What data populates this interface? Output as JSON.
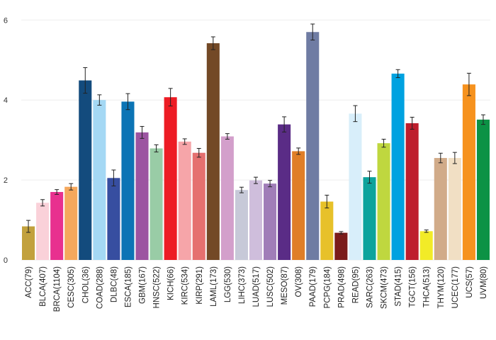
{
  "chart_data": {
    "type": "bar",
    "categories": [
      "ACC(79)",
      "BLCA(407)",
      "BRCA(1104)",
      "CESC(305)",
      "CHOL(36)",
      "COAD(288)",
      "DLBC(48)",
      "ESCA(185)",
      "GBM(167)",
      "HNSC(522)",
      "KICH(66)",
      "KIRC(534)",
      "KIRP(291)",
      "LAML(173)",
      "LGG(530)",
      "LIHC(373)",
      "LUAD(517)",
      "LUSC(502)",
      "MESO(87)",
      "OV(308)",
      "PAAD(179)",
      "PCPG(184)",
      "PRAD(498)",
      "READ(95)",
      "SARC(263)",
      "SKCM(473)",
      "STAD(415)",
      "TGCT(156)",
      "THCA(513)",
      "THYM(120)",
      "UCEC(177)",
      "UCS(57)",
      "UVM(80)"
    ],
    "values": [
      0.84,
      1.43,
      1.7,
      1.83,
      4.49,
      4.0,
      2.05,
      3.96,
      3.19,
      2.79,
      4.07,
      2.96,
      2.68,
      5.42,
      3.09,
      1.75,
      1.99,
      1.91,
      3.39,
      2.72,
      5.7,
      1.46,
      0.68,
      3.66,
      2.07,
      2.92,
      4.66,
      3.42,
      0.72,
      2.55,
      2.55,
      4.39,
      3.51
    ],
    "errors": [
      0.15,
      0.08,
      0.06,
      0.08,
      0.32,
      0.13,
      0.2,
      0.2,
      0.15,
      0.09,
      0.22,
      0.07,
      0.11,
      0.16,
      0.07,
      0.07,
      0.08,
      0.08,
      0.19,
      0.08,
      0.2,
      0.16,
      0.03,
      0.2,
      0.15,
      0.1,
      0.1,
      0.15,
      0.03,
      0.12,
      0.14,
      0.28,
      0.12
    ],
    "colors": [
      "#c2a13d",
      "#fad1d9",
      "#e8308f",
      "#f5a85d",
      "#134b7d",
      "#a4d8f4",
      "#374ea0",
      "#0c74b5",
      "#9c54a1",
      "#99cca6",
      "#ed1c24",
      "#f6a5a9",
      "#e5706f",
      "#734926",
      "#d39fcb",
      "#c7c9d8",
      "#cfbedc",
      "#a07db8",
      "#5a2c86",
      "#e07e27",
      "#6f7ca3",
      "#e7c12a",
      "#7b1c1a",
      "#d8eefa",
      "#0ca39c",
      "#bfd73f",
      "#00a2e0",
      "#be1e2d",
      "#f2eb27",
      "#d1ab89",
      "#f1dfc4",
      "#f6921e",
      "#0c9245"
    ],
    "y_ticks": [
      0,
      2,
      4,
      6
    ],
    "ylim": [
      0,
      6.2
    ],
    "grid": true,
    "legend": "none",
    "title": "",
    "xlabel": "",
    "ylabel": ""
  }
}
